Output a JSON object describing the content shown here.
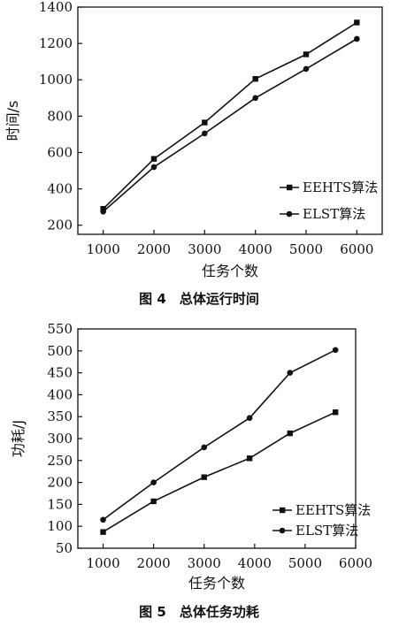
{
  "chart_data": [
    {
      "type": "line",
      "caption": "图 4　总体运行时间",
      "xlabel": "任务个数",
      "ylabel": "时间/s",
      "x": [
        1000,
        2000,
        3000,
        4000,
        5000,
        6000
      ],
      "xticks": [
        1000,
        2000,
        3000,
        4000,
        5000,
        6000
      ],
      "yticks": [
        200,
        400,
        600,
        800,
        1000,
        1200,
        1400
      ],
      "xlim": [
        500,
        6500
      ],
      "ylim": [
        150,
        1400
      ],
      "grid": false,
      "legend_position": "bottom-right",
      "series": [
        {
          "name": "EEHTS算法",
          "marker": "square",
          "values": [
            290,
            565,
            765,
            1005,
            1140,
            1315
          ]
        },
        {
          "name": "ELST算法",
          "marker": "circle",
          "values": [
            275,
            520,
            705,
            900,
            1060,
            1225
          ]
        }
      ]
    },
    {
      "type": "line",
      "caption": "图 5　总体任务功耗",
      "xlabel": "任务个数",
      "ylabel": "功耗/J",
      "xticks": [
        1000,
        2000,
        3000,
        4000,
        5000,
        6000
      ],
      "yticks": [
        50,
        100,
        150,
        200,
        250,
        300,
        350,
        400,
        450,
        500,
        550
      ],
      "xlim": [
        500,
        6000
      ],
      "ylim": [
        50,
        550
      ],
      "grid": false,
      "legend_position": "bottom-right",
      "series": [
        {
          "name": "EEHTS算法",
          "marker": "square",
          "x": [
            1000,
            2000,
            3000,
            3900,
            4700,
            5600
          ],
          "values": [
            87,
            157,
            212,
            255,
            312,
            360
          ]
        },
        {
          "name": "ELST算法",
          "marker": "circle",
          "x": [
            1000,
            2000,
            3000,
            3900,
            4700,
            5600
          ],
          "values": [
            115,
            200,
            280,
            347,
            450,
            502
          ]
        }
      ]
    }
  ]
}
